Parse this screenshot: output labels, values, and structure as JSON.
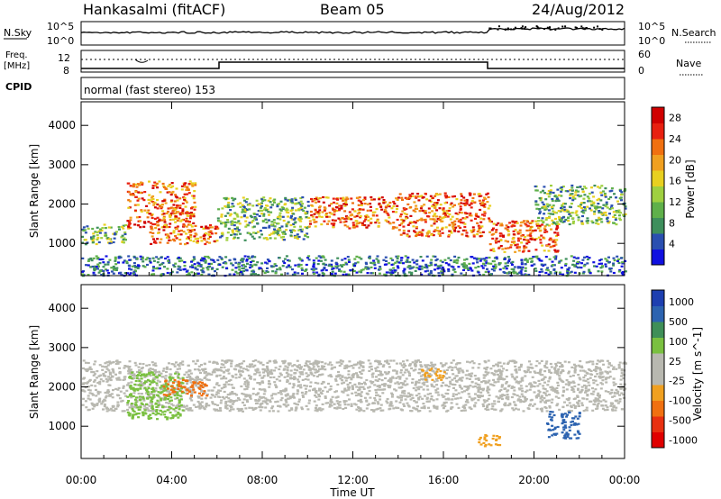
{
  "header": {
    "station": "Hankasalmi (fitACF)",
    "beam": "Beam 05",
    "date": "24/Aug/2012"
  },
  "summary_panels": {
    "nsky_label": "N.Sky",
    "nsky_scale_top": "10^5",
    "nsky_scale_bottom": "10^0",
    "nsearch_label": "N.Search",
    "nsearch_scale_top": "10^5",
    "nsearch_scale_bottom": "10^0",
    "freq_label_line1": "Freq.",
    "freq_label_line2": "[MHz]",
    "freq_ticks": [
      "12",
      "8"
    ],
    "nave_ticks": [
      "60",
      "0"
    ],
    "nave_label": "Nave",
    "cpid_label": "CPID",
    "cpid_text": "normal (fast stereo) 153"
  },
  "colors": {
    "power_scale": [
      "#1010e0",
      "#2a4fb0",
      "#3e8f5c",
      "#5fb04a",
      "#9fd040",
      "#e8d020",
      "#f0a020",
      "#f07010",
      "#e82010",
      "#d00000"
    ],
    "velocity_scale": [
      "#1d3fb0",
      "#2c63b0",
      "#3f8f58",
      "#7ac040",
      "#b8b8b0",
      "#b8b8b0",
      "#f0a020",
      "#f07010",
      "#e83010",
      "#e00000"
    ],
    "ground_scatter": "#b8b8b0"
  },
  "chart_data": [
    {
      "type": "heatmap",
      "panel": "power",
      "xlabel": "Time UT",
      "ylabel": "Slant Range [km]",
      "x_ticks": [
        "00:00",
        "04:00",
        "08:00",
        "12:00",
        "16:00",
        "20:00",
        "00:00"
      ],
      "y_ticks": [
        "1000",
        "2000",
        "3000",
        "4000"
      ],
      "xlim": [
        0,
        24
      ],
      "ylim": [
        180,
        4600
      ],
      "colorbar": {
        "label": "Power [dB]",
        "ticks": [
          "4",
          "8",
          "12",
          "16",
          "20",
          "24",
          "28"
        ],
        "range": [
          0,
          30
        ]
      },
      "scatter_bands": [
        {
          "t": [
            0.0,
            2.0
          ],
          "r": [
            1000,
            1500
          ],
          "level": "medium"
        },
        {
          "t": [
            2.0,
            5.0
          ],
          "r": [
            1400,
            2600
          ],
          "level": "high"
        },
        {
          "t": [
            3.0,
            6.0
          ],
          "r": [
            1000,
            1500
          ],
          "level": "high"
        },
        {
          "t": [
            6.0,
            10.0
          ],
          "r": [
            1100,
            2200
          ],
          "level": "medium"
        },
        {
          "t": [
            10.0,
            14.0
          ],
          "r": [
            1400,
            2200
          ],
          "level": "high"
        },
        {
          "t": [
            14.0,
            18.0
          ],
          "r": [
            1200,
            2300
          ],
          "level": "high"
        },
        {
          "t": [
            18.0,
            21.0
          ],
          "r": [
            800,
            1600
          ],
          "level": "high"
        },
        {
          "t": [
            20.0,
            24.0
          ],
          "r": [
            1500,
            2500
          ],
          "level": "medium"
        },
        {
          "t": [
            0.0,
            24.0
          ],
          "r": [
            200,
            700
          ],
          "level": "low"
        }
      ]
    },
    {
      "type": "heatmap",
      "panel": "velocity",
      "xlabel": "Time UT",
      "ylabel": "Slant Range [km]",
      "x_ticks": [
        "00:00",
        "04:00",
        "08:00",
        "12:00",
        "16:00",
        "20:00",
        "00:00"
      ],
      "y_ticks": [
        "1000",
        "2000",
        "3000",
        "4000"
      ],
      "xlim": [
        0,
        24
      ],
      "ylim": [
        180,
        4600
      ],
      "colorbar": {
        "label": "Velocity [m s^-1]",
        "ticks": [
          "1000",
          "500",
          "100",
          "25",
          "-25",
          "-100",
          "-500",
          "-1000"
        ]
      },
      "scatter_bands": [
        {
          "t": [
            0.0,
            24.0
          ],
          "r": [
            1400,
            2700
          ],
          "value": "ground"
        },
        {
          "t": [
            2.0,
            4.5
          ],
          "r": [
            1200,
            2400
          ],
          "value": 100
        },
        {
          "t": [
            3.5,
            5.5
          ],
          "r": [
            1800,
            2200
          ],
          "value": -500
        },
        {
          "t": [
            15.0,
            16.0
          ],
          "r": [
            2200,
            2500
          ],
          "value": -100
        },
        {
          "t": [
            17.5,
            18.5
          ],
          "r": [
            500,
            800
          ],
          "value": -100
        },
        {
          "t": [
            20.5,
            22.0
          ],
          "r": [
            700,
            1400
          ],
          "value": 500
        }
      ]
    }
  ]
}
